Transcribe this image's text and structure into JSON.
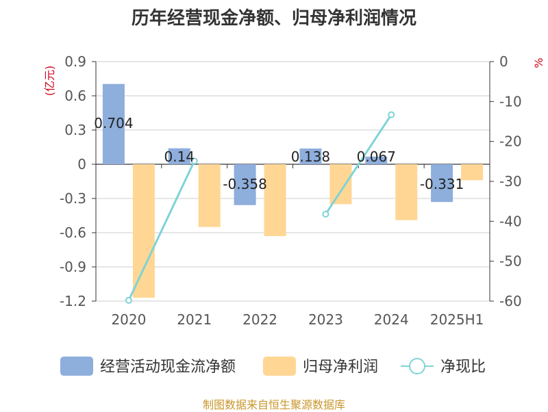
{
  "chart_data": {
    "type": "bar",
    "title": "历年经营现金净额、归母净利润情况",
    "categories": [
      "2020",
      "2021",
      "2022",
      "2023",
      "2024",
      "2025H1"
    ],
    "y_left": {
      "label": "(亿元)",
      "min": -1.2,
      "max": 0.9,
      "ticks": [
        "0.9",
        "0.6",
        "0.3",
        "0",
        "-0.3",
        "-0.6",
        "-0.9",
        "-1.2"
      ]
    },
    "y_right": {
      "label": "%",
      "min": -60,
      "max": 0,
      "ticks": [
        "0",
        "-10",
        "-20",
        "-30",
        "-40",
        "-50",
        "-60"
      ]
    },
    "series": [
      {
        "name": "经营活动现金流净额",
        "type": "bar",
        "axis": "left",
        "color": "#8eaedc",
        "values": [
          0.704,
          0.14,
          -0.358,
          0.138,
          0.067,
          -0.331
        ],
        "labels": [
          "0.704",
          "0.14",
          "-0.358",
          "0.138",
          "0.067",
          "-0.331"
        ]
      },
      {
        "name": "归母净利润",
        "type": "bar",
        "axis": "left",
        "color": "#ffd694",
        "values": [
          -1.17,
          -0.55,
          -0.63,
          -0.35,
          -0.49,
          -0.14
        ]
      },
      {
        "name": "净现比",
        "type": "line",
        "axis": "right",
        "color": "#7fd3d6",
        "values": [
          -59.8,
          -24.9,
          null,
          -38.2,
          -13.3,
          null
        ]
      }
    ],
    "legend_position": "bottom"
  },
  "source": "制图数据来自恒生聚源数据库"
}
